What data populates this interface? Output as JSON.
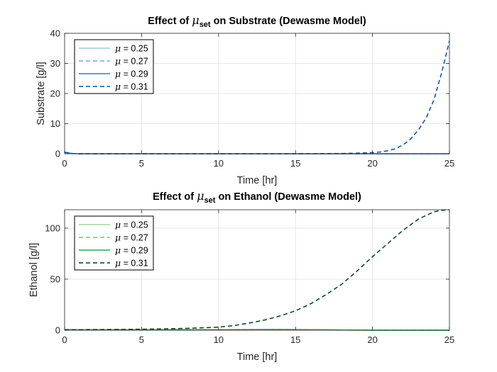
{
  "chart_data": [
    {
      "type": "line",
      "title": "Effect of μset on Substrate (Dewasme Model)",
      "title_parts": {
        "prefix": "Effect of ",
        "symbol": "μ",
        "subscript": "set",
        "suffix": " on Substrate (Dewasme Model)"
      },
      "xlabel": "Time [hr]",
      "ylabel": "Substrate [g/l]",
      "xlim": [
        0,
        25
      ],
      "ylim": [
        0,
        40
      ],
      "xticks": [
        0,
        5,
        10,
        15,
        20,
        25
      ],
      "yticks": [
        0,
        10,
        20,
        30,
        40
      ],
      "grid": true,
      "legend_position": "top-left",
      "series": [
        {
          "name": "μ = 0.25",
          "color": "#9ecae1",
          "dash": "solid",
          "x": [
            0,
            0.5,
            1,
            5,
            10,
            15,
            20,
            25
          ],
          "y": [
            0.5,
            0.1,
            0,
            0,
            0,
            0,
            0,
            0
          ]
        },
        {
          "name": "μ = 0.27",
          "color": "#6baed6",
          "dash": "dashed",
          "x": [
            0,
            0.5,
            1,
            5,
            10,
            15,
            20,
            25
          ],
          "y": [
            0.5,
            0.1,
            0,
            0,
            0,
            0,
            0,
            0
          ]
        },
        {
          "name": "μ = 0.29",
          "color": "#3182bd",
          "dash": "solid",
          "x": [
            0,
            0.5,
            1,
            5,
            10,
            15,
            20,
            25
          ],
          "y": [
            0.5,
            0.1,
            0,
            0,
            0,
            0,
            0,
            0
          ]
        },
        {
          "name": "μ = 0.31",
          "color": "#08519c",
          "dash": "dashed",
          "x": [
            0,
            0.5,
            1,
            5,
            10,
            15,
            18,
            19,
            20,
            20.5,
            21,
            21.5,
            22,
            22.5,
            23,
            23.5,
            24,
            24.5,
            25
          ],
          "y": [
            0.5,
            0.1,
            0,
            0,
            0,
            0,
            0.1,
            0.2,
            0.4,
            0.6,
            1.0,
            1.7,
            3.0,
            5.0,
            8.0,
            12.0,
            18.0,
            27.0,
            37.5
          ]
        }
      ]
    },
    {
      "type": "line",
      "title": "Effect of μset on Ethanol (Dewasme Model)",
      "title_parts": {
        "prefix": "Effect of ",
        "symbol": "μ",
        "subscript": "set",
        "suffix": " on Ethanol (Dewasme Model)"
      },
      "xlabel": "Time [hr]",
      "ylabel": "Ethanol [g/l]",
      "xlim": [
        0,
        25
      ],
      "ylim": [
        0,
        118
      ],
      "xticks": [
        0,
        5,
        10,
        15,
        20,
        25
      ],
      "yticks": [
        0,
        50,
        100
      ],
      "grid": true,
      "legend_position": "top-left",
      "series": [
        {
          "name": "μ = 0.25",
          "color": "#a1d99b",
          "dash": "solid",
          "x": [
            0,
            5,
            10,
            12,
            14,
            16,
            18,
            20,
            25
          ],
          "y": [
            0.5,
            0.4,
            0.5,
            0.6,
            0.7,
            0.5,
            0.2,
            0,
            0
          ]
        },
        {
          "name": "μ = 0.27",
          "color": "#74c476",
          "dash": "dashed",
          "x": [
            0,
            5,
            10,
            12,
            14,
            16,
            18,
            20,
            25
          ],
          "y": [
            0.5,
            0.4,
            0.5,
            0.6,
            0.7,
            0.5,
            0.2,
            0,
            0
          ]
        },
        {
          "name": "μ = 0.29",
          "color": "#31a354",
          "dash": "solid",
          "x": [
            0,
            5,
            10,
            12,
            14,
            16,
            18,
            20,
            25
          ],
          "y": [
            0.5,
            0.4,
            0.5,
            0.6,
            0.7,
            0.5,
            0.2,
            0,
            0
          ]
        },
        {
          "name": "μ = 0.31",
          "color": "#00441b",
          "dash": "dashed",
          "x": [
            0,
            2,
            4,
            6,
            8,
            10,
            11,
            12,
            13,
            14,
            15,
            16,
            17,
            18,
            19,
            20,
            21,
            22,
            23,
            24,
            24.5,
            25
          ],
          "y": [
            0.5,
            0.6,
            0.8,
            1.2,
            1.8,
            3.0,
            4.5,
            7.0,
            10.0,
            14.0,
            19.0,
            26.0,
            35.0,
            45.0,
            58.0,
            72.0,
            85.0,
            98.0,
            109.0,
            116.0,
            117.5,
            118.0
          ]
        }
      ]
    }
  ]
}
